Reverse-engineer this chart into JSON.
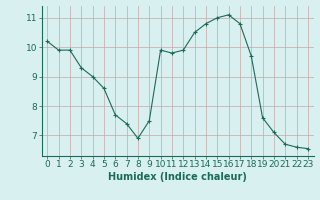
{
  "x": [
    0,
    1,
    2,
    3,
    4,
    5,
    6,
    7,
    8,
    9,
    10,
    11,
    12,
    13,
    14,
    15,
    16,
    17,
    18,
    19,
    20,
    21,
    22,
    23
  ],
  "y": [
    10.2,
    9.9,
    9.9,
    9.3,
    9.0,
    8.6,
    7.7,
    7.4,
    6.9,
    7.5,
    9.9,
    9.8,
    9.9,
    10.5,
    10.8,
    11.0,
    11.1,
    10.8,
    9.7,
    7.6,
    7.1,
    6.7,
    6.6,
    6.55
  ],
  "line_color": "#1a6b5a",
  "marker": "+",
  "bg_color": "#d8f0f0",
  "grid_color": "#c8a8a8",
  "xlabel": "Humidex (Indice chaleur)",
  "xlabel_fontsize": 7,
  "tick_fontsize": 6.5,
  "ylim": [
    6.3,
    11.4
  ],
  "xlim": [
    -0.5,
    23.5
  ],
  "yticks": [
    7,
    8,
    9,
    10,
    11
  ],
  "xticks": [
    0,
    1,
    2,
    3,
    4,
    5,
    6,
    7,
    8,
    9,
    10,
    11,
    12,
    13,
    14,
    15,
    16,
    17,
    18,
    19,
    20,
    21,
    22,
    23
  ]
}
